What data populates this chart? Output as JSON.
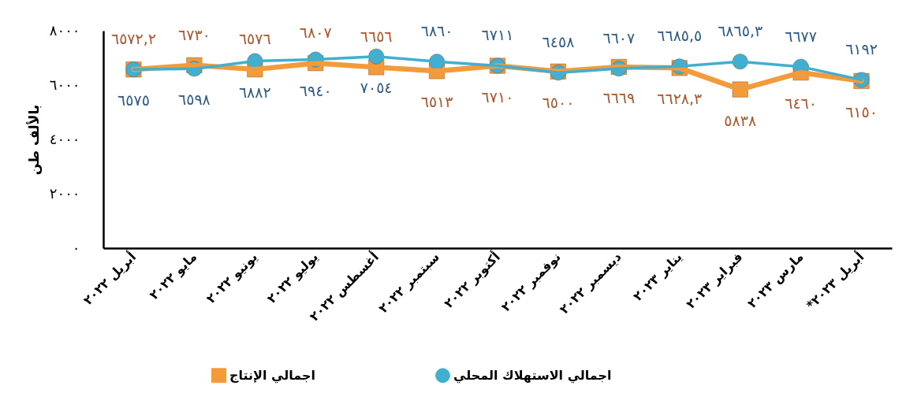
{
  "chart_data": {
    "type": "line",
    "categories": [
      "أبريل ٢٠٢٢",
      "مايو ٢٠٢٢",
      "يونيو ٢٠٢٢",
      "يوليو ٢٠٢٢",
      "أغسطس ٢٠٢٢",
      "سبتمبر ٢٠٢٢",
      "أكتوبر ٢٠٢٢",
      "نوفمبر ٢٠٢٢",
      "ديسمبر ٢٠٢٢",
      "يناير ٢٠٢٣",
      "فبراير ٢٠٢٣",
      "مارس ٢٠٢٣",
      "أبريل ٢٠٢٣*"
    ],
    "ylabel": "بالألف طن",
    "ylim": [
      0,
      8000
    ],
    "yticks": [
      {
        "value": 0,
        "label": "٠"
      },
      {
        "value": 2000,
        "label": "٢٠٠٠"
      },
      {
        "value": 4000,
        "label": "٤٠٠٠"
      },
      {
        "value": 6000,
        "label": "٦٠٠٠"
      },
      {
        "value": 8000,
        "label": "٨٠٠٠"
      }
    ],
    "legend": "bottom",
    "line_style": "solid",
    "series": [
      {
        "name": "اجمالي الإنتاج",
        "color": "#f39a3b",
        "marker": "square",
        "values": [
          6572.2,
          6730,
          6576,
          6807,
          6656,
          6513,
          6710,
          6500,
          6669,
          6628.3,
          5838,
          6460,
          6150
        ],
        "value_labels": [
          "٦٥٧٢,٢",
          "٦٧٣٠",
          "٦٥٧٦",
          "٦٨٠٧",
          "٦٦٥٦",
          "٦٥١٣",
          "٦٧١٠",
          "٦٥٠٠",
          "٦٦٦٩",
          "٦٦٢٨,٣",
          "٥٨٣٨",
          "٦٤٦٠",
          "٦١٥٠"
        ]
      },
      {
        "name": "اجمالي الاستهلاك المحلي",
        "color": "#42afd1",
        "marker": "circle",
        "values": [
          6575,
          6598,
          6882,
          6940,
          7054,
          6860,
          6711,
          6458,
          6607,
          6685.5,
          6865.3,
          6677,
          6192
        ],
        "value_labels": [
          "٦٥٧٥",
          "٦٥٩٨",
          "٦٨٨٢",
          "٦٩٤٠",
          "٧٠٥٤",
          "٦٨٦٠",
          "٦٧١١",
          "٦٤٥٨",
          "٦٦٠٧",
          "٦٦٨٥,٥",
          "٦٨٦٥,٣",
          "٦٦٧٧",
          "٦١٩٢"
        ]
      }
    ]
  }
}
